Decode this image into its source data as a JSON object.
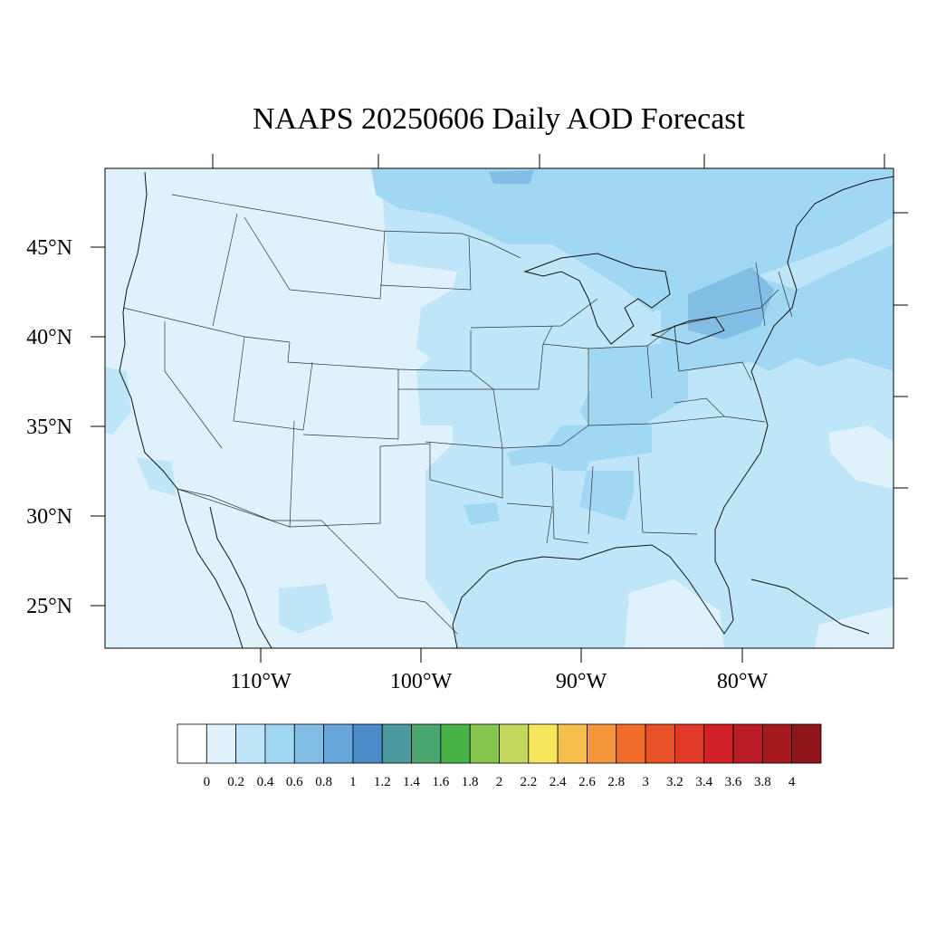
{
  "title": "NAAPS 20250606 Daily AOD Forecast",
  "map": {
    "lat_labels": [
      "45°N",
      "40°N",
      "35°N",
      "30°N",
      "25°N"
    ],
    "lon_labels": [
      "110°W",
      "100°W",
      "90°W",
      "80°W"
    ]
  },
  "colorbar": {
    "tick_labels": [
      "0",
      "0.2",
      "0.4",
      "0.6",
      "0.8",
      "1",
      "1.2",
      "1.4",
      "1.6",
      "1.8",
      "2",
      "2.2",
      "2.4",
      "2.6",
      "2.8",
      "3",
      "3.2",
      "3.4",
      "3.6",
      "3.8",
      "4"
    ],
    "colors": [
      "#ffffff",
      "#dff2fb",
      "#bfe6f8",
      "#a0d8f3",
      "#82bde6",
      "#67a6db",
      "#4a8cca",
      "#4a9a9d",
      "#49a66f",
      "#4ab348",
      "#87c64c",
      "#c3d85a",
      "#f6e65b",
      "#f7bf4a",
      "#f6963c",
      "#f26d2b",
      "#e85127",
      "#e23a26",
      "#d12028",
      "#b91c24",
      "#a5181c",
      "#8e1519"
    ]
  }
}
